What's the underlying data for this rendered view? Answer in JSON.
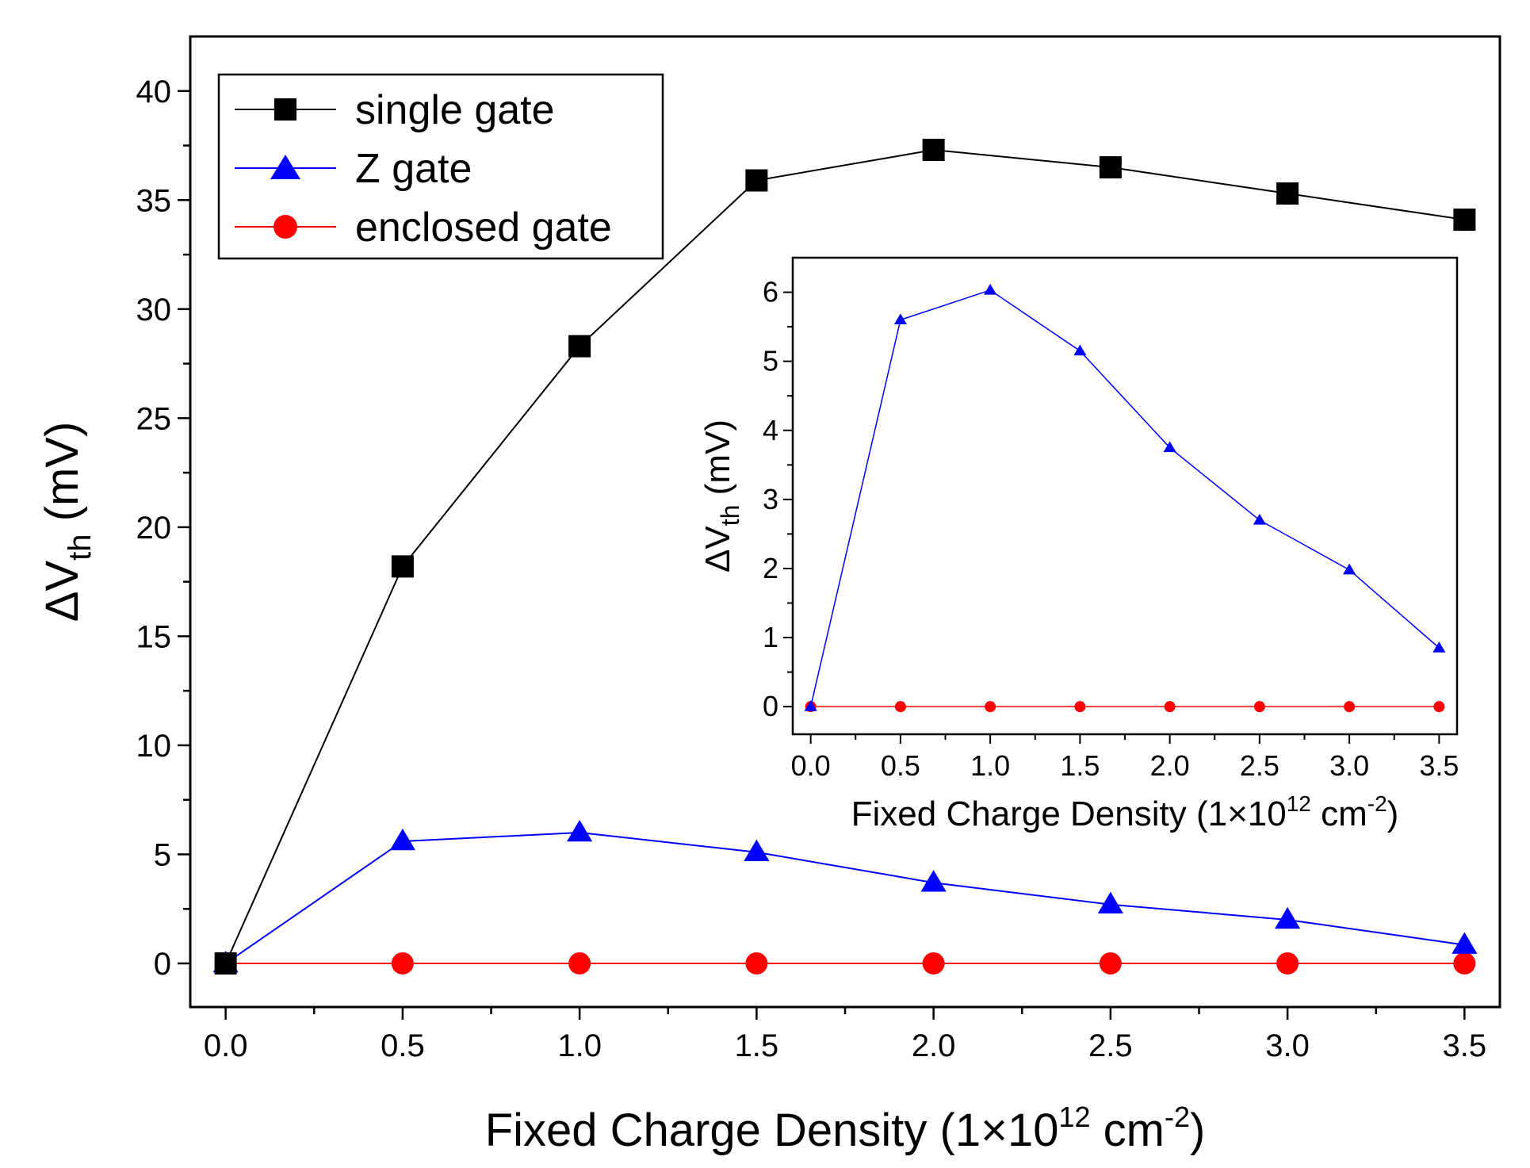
{
  "chart_data": [
    {
      "id": "main",
      "type": "line",
      "xlabel": "Fixed Charge Density (1×10",
      "xlabel_sup": "12",
      "xlabel_unit": " cm",
      "xlabel_unit_sup": "-2",
      "xlabel_close": ")",
      "ylabel": "ΔV",
      "ylabel_sub": "th",
      "ylabel_unit": " (mV)",
      "xlim": [
        -0.1,
        3.6
      ],
      "ylim": [
        -2,
        42.5
      ],
      "xticks": [
        "0.0",
        "0.5",
        "1.0",
        "1.5",
        "2.0",
        "2.5",
        "3.0",
        "3.5"
      ],
      "xtick_values": [
        0,
        0.5,
        1.0,
        1.5,
        2.0,
        2.5,
        3.0,
        3.5
      ],
      "yticks": [
        "0",
        "5",
        "10",
        "15",
        "20",
        "25",
        "30",
        "35",
        "40"
      ],
      "ytick_values": [
        0,
        5,
        10,
        15,
        20,
        25,
        30,
        35,
        40
      ],
      "legend_position": "top-left",
      "series": [
        {
          "name": "single gate",
          "color": "#000000",
          "marker": "square",
          "x": [
            0,
            0.5,
            1.0,
            1.5,
            2.0,
            2.5,
            3.0,
            3.5
          ],
          "values": [
            0,
            18.2,
            28.3,
            35.9,
            37.3,
            36.5,
            35.3,
            34.1
          ]
        },
        {
          "name": "Z gate",
          "color": "#0000ff",
          "marker": "triangle",
          "x": [
            0,
            0.5,
            1.0,
            1.5,
            2.0,
            2.5,
            3.0,
            3.5
          ],
          "values": [
            0,
            5.6,
            6.0,
            5.1,
            3.7,
            2.7,
            2.0,
            0.85
          ]
        },
        {
          "name": "enclosed gate",
          "color": "#ff0000",
          "marker": "circle",
          "x": [
            0,
            0.5,
            1.0,
            1.5,
            2.0,
            2.5,
            3.0,
            3.5
          ],
          "values": [
            0,
            0,
            0,
            0,
            0,
            0,
            0,
            0
          ]
        }
      ]
    },
    {
      "id": "inset",
      "type": "line",
      "xlabel": "Fixed Charge Density  (1×10",
      "xlabel_sup": "12",
      "xlabel_unit": " cm",
      "xlabel_unit_sup": "-2",
      "xlabel_close": ")",
      "ylabel": "ΔV",
      "ylabel_sub": "th",
      "ylabel_unit": " (mV)",
      "xlim": [
        -0.1,
        3.6
      ],
      "ylim": [
        -0.4,
        6.5
      ],
      "xticks": [
        "0.0",
        "0.5",
        "1.0",
        "1.5",
        "2.0",
        "2.5",
        "3.0",
        "3.5"
      ],
      "xtick_values": [
        0,
        0.5,
        1.0,
        1.5,
        2.0,
        2.5,
        3.0,
        3.5
      ],
      "yticks": [
        "0",
        "1",
        "2",
        "3",
        "4",
        "5",
        "6"
      ],
      "ytick_values": [
        0,
        1,
        2,
        3,
        4,
        5,
        6
      ],
      "series": [
        {
          "name": "Z gate",
          "color": "#0000ff",
          "marker": "triangle",
          "x": [
            0,
            0.5,
            1.0,
            1.5,
            2.0,
            2.5,
            3.0,
            3.5
          ],
          "values": [
            0,
            5.6,
            6.03,
            5.15,
            3.75,
            2.7,
            1.98,
            0.85
          ]
        },
        {
          "name": "enclosed gate",
          "color": "#ff0000",
          "marker": "circle",
          "x": [
            0,
            0.5,
            1.0,
            1.5,
            2.0,
            2.5,
            3.0,
            3.5
          ],
          "values": [
            0,
            0,
            0,
            0,
            0,
            0,
            0,
            0
          ]
        }
      ]
    }
  ]
}
